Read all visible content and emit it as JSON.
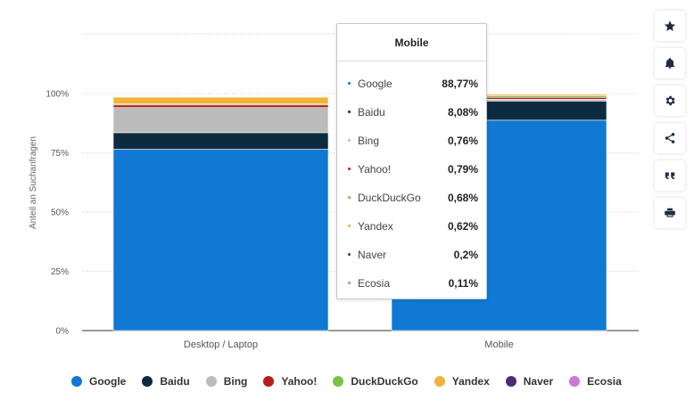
{
  "chart_data": {
    "type": "bar",
    "stacked": true,
    "categories": [
      "Desktop / Laptop",
      "Mobile"
    ],
    "ylabel": "Anteil an Suchanfragen",
    "ylim": [
      0,
      100
    ],
    "yticks": [
      "0%",
      "25%",
      "50%",
      "75%",
      "100%"
    ],
    "series": [
      {
        "name": "Google",
        "color": "#0f79d3",
        "values": [
          76.5,
          88.77
        ]
      },
      {
        "name": "Baidu",
        "color": "#0c2b40",
        "values": [
          7.0,
          8.08
        ]
      },
      {
        "name": "Bing",
        "color": "#bbbbbb",
        "values": [
          10.6,
          0.76
        ]
      },
      {
        "name": "Yahoo!",
        "color": "#b91b1b",
        "values": [
          1.1,
          0.79
        ]
      },
      {
        "name": "DuckDuckGo",
        "color": "#7bc143",
        "values": [
          0.4,
          0.68
        ]
      },
      {
        "name": "Yandex",
        "color": "#f0b43c",
        "values": [
          2.9,
          0.62
        ]
      },
      {
        "name": "Naver",
        "color": "#4d2a75",
        "values": [
          0.1,
          0.2
        ]
      },
      {
        "name": "Ecosia",
        "color": "#cf76d4",
        "values": [
          0.1,
          0.11
        ]
      }
    ],
    "grid": true,
    "legend_position": "bottom-left"
  },
  "tooltip": {
    "title": "Mobile",
    "rows": [
      {
        "name": "Google",
        "value": "88,77%",
        "color": "#0f79d3"
      },
      {
        "name": "Baidu",
        "value": "8,08%",
        "color": "#0c2b40"
      },
      {
        "name": "Bing",
        "value": "0,76%",
        "color": "#bbbbbb"
      },
      {
        "name": "Yahoo!",
        "value": "0,79%",
        "color": "#b91b1b"
      },
      {
        "name": "DuckDuckGo",
        "value": "0,68%",
        "color": "#7bc143"
      },
      {
        "name": "Yandex",
        "value": "0,62%",
        "color": "#f0b43c"
      },
      {
        "name": "Naver",
        "value": "0,2%",
        "color": "#4d2a75"
      },
      {
        "name": "Ecosia",
        "value": "0,11%",
        "color": "#cf76d4"
      }
    ]
  },
  "legend": [
    {
      "name": "Google",
      "color": "#0f79d3"
    },
    {
      "name": "Baidu",
      "color": "#0c2b40"
    },
    {
      "name": "Bing",
      "color": "#bbbbbb"
    },
    {
      "name": "Yahoo!",
      "color": "#b91b1b"
    },
    {
      "name": "DuckDuckGo",
      "color": "#7bc143"
    },
    {
      "name": "Yandex",
      "color": "#f0b43c"
    },
    {
      "name": "Naver",
      "color": "#4d2a75"
    },
    {
      "name": "Ecosia",
      "color": "#cf76d4"
    }
  ],
  "toolbar": [
    {
      "icon": "star-icon"
    },
    {
      "icon": "bell-icon"
    },
    {
      "icon": "gear-icon"
    },
    {
      "icon": "share-icon"
    },
    {
      "icon": "quote-icon"
    },
    {
      "icon": "print-icon"
    }
  ]
}
